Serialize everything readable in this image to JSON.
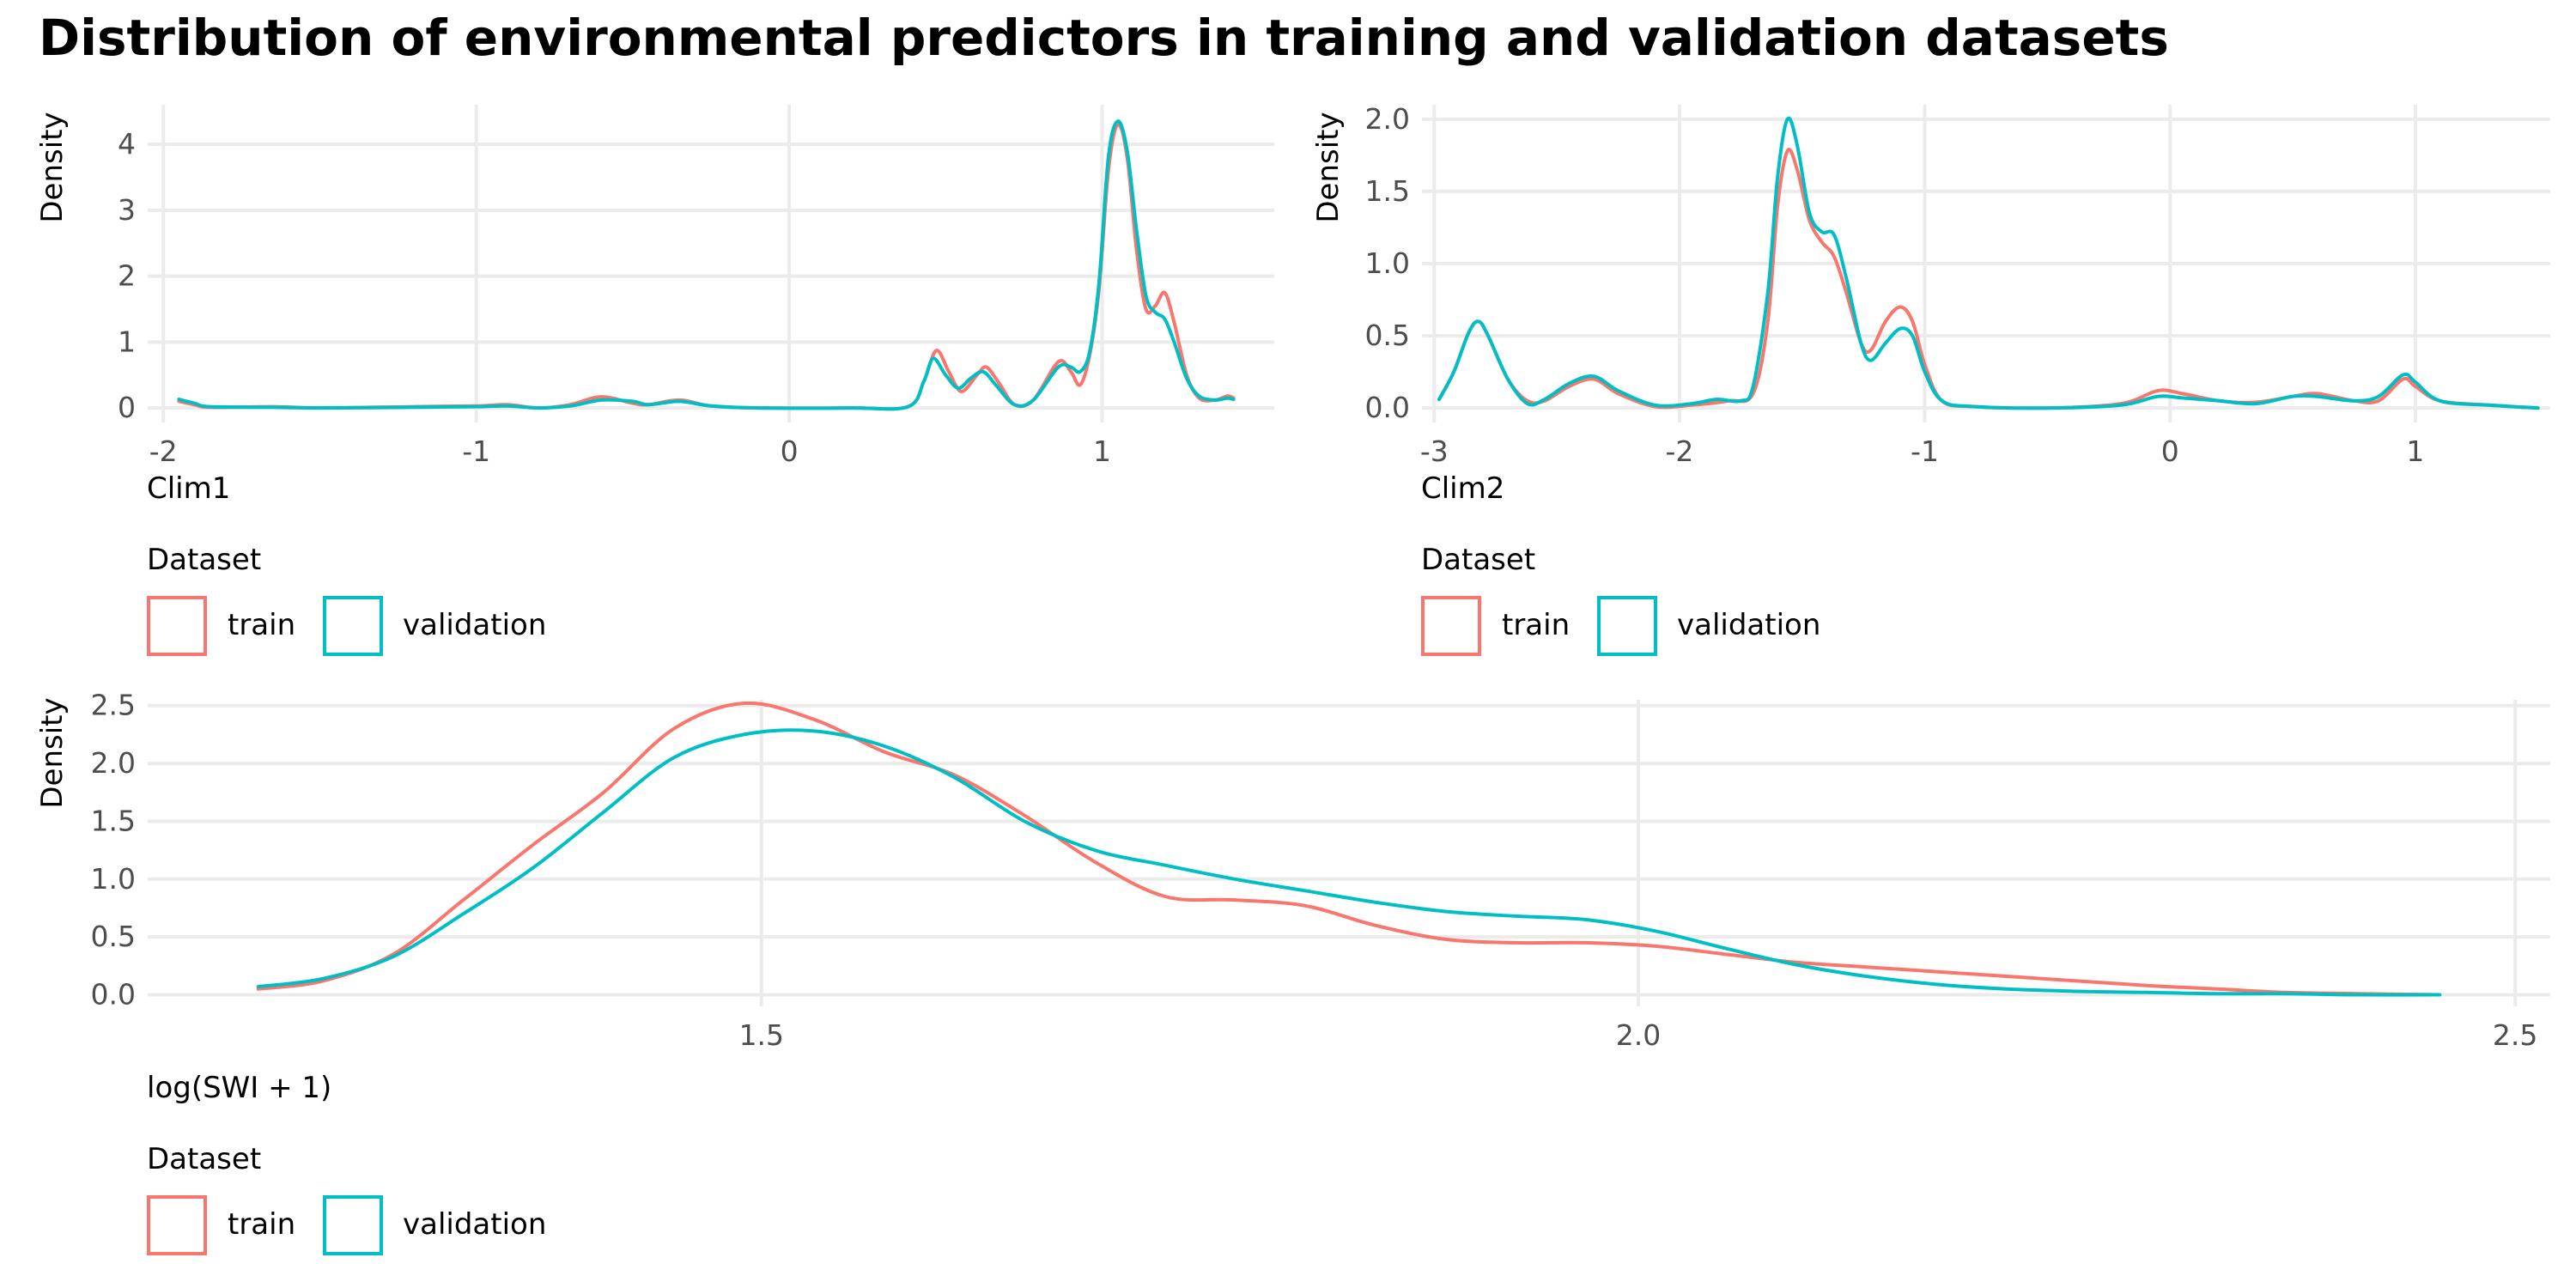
{
  "title": "Distribution of environmental predictors in training and validation datasets",
  "colors": {
    "train": "#F8766D",
    "validation": "#00BFC4",
    "grid": "#EBEBEB"
  },
  "chart_data": [
    {
      "type": "line",
      "name": "clim1",
      "xlabel": "Clim1",
      "ylabel": "Density",
      "xlim": [
        -2.05,
        1.55
      ],
      "ylim": [
        -0.22,
        4.6
      ],
      "x_ticks": [
        -2,
        -1,
        0,
        1
      ],
      "x_tick_labels": [
        "-2",
        "-1",
        "0",
        "1"
      ],
      "y_ticks": [
        0,
        1,
        2,
        3,
        4
      ],
      "y_tick_labels": [
        "0",
        "1",
        "2",
        "3",
        "4"
      ],
      "legend": {
        "title": "Dataset",
        "entries": [
          "train",
          "validation"
        ]
      },
      "series": [
        {
          "name": "train",
          "color": "#F8766D",
          "points": [
            [
              -1.95,
              0.1
            ],
            [
              -1.9,
              0.05
            ],
            [
              -1.85,
              0.01
            ],
            [
              -1.65,
              0.02
            ],
            [
              -1.5,
              0.0
            ],
            [
              -1.2,
              0.02
            ],
            [
              -1.0,
              0.03
            ],
            [
              -0.9,
              0.05
            ],
            [
              -0.8,
              0.0
            ],
            [
              -0.7,
              0.05
            ],
            [
              -0.6,
              0.17
            ],
            [
              -0.5,
              0.07
            ],
            [
              -0.45,
              0.05
            ],
            [
              -0.35,
              0.12
            ],
            [
              -0.25,
              0.03
            ],
            [
              -0.1,
              0.0
            ],
            [
              0.2,
              0.0
            ],
            [
              0.38,
              0.02
            ],
            [
              0.43,
              0.4
            ],
            [
              0.47,
              0.87
            ],
            [
              0.51,
              0.55
            ],
            [
              0.55,
              0.25
            ],
            [
              0.6,
              0.5
            ],
            [
              0.63,
              0.62
            ],
            [
              0.67,
              0.38
            ],
            [
              0.72,
              0.05
            ],
            [
              0.78,
              0.12
            ],
            [
              0.86,
              0.7
            ],
            [
              0.9,
              0.55
            ],
            [
              0.93,
              0.35
            ],
            [
              0.96,
              0.8
            ],
            [
              0.99,
              1.8
            ],
            [
              1.02,
              3.6
            ],
            [
              1.05,
              4.3
            ],
            [
              1.08,
              3.8
            ],
            [
              1.11,
              2.4
            ],
            [
              1.14,
              1.5
            ],
            [
              1.17,
              1.55
            ],
            [
              1.2,
              1.75
            ],
            [
              1.23,
              1.3
            ],
            [
              1.27,
              0.5
            ],
            [
              1.31,
              0.15
            ],
            [
              1.36,
              0.12
            ],
            [
              1.4,
              0.18
            ],
            [
              1.42,
              0.15
            ]
          ]
        },
        {
          "name": "validation",
          "color": "#00BFC4",
          "points": [
            [
              -1.95,
              0.13
            ],
            [
              -1.9,
              0.07
            ],
            [
              -1.85,
              0.02
            ],
            [
              -1.65,
              0.01
            ],
            [
              -1.5,
              0.0
            ],
            [
              -1.2,
              0.01
            ],
            [
              -1.0,
              0.02
            ],
            [
              -0.9,
              0.03
            ],
            [
              -0.8,
              0.0
            ],
            [
              -0.7,
              0.03
            ],
            [
              -0.6,
              0.12
            ],
            [
              -0.5,
              0.1
            ],
            [
              -0.45,
              0.05
            ],
            [
              -0.35,
              0.1
            ],
            [
              -0.25,
              0.03
            ],
            [
              -0.1,
              0.0
            ],
            [
              0.2,
              0.0
            ],
            [
              0.38,
              0.02
            ],
            [
              0.43,
              0.4
            ],
            [
              0.46,
              0.75
            ],
            [
              0.5,
              0.5
            ],
            [
              0.54,
              0.3
            ],
            [
              0.58,
              0.45
            ],
            [
              0.62,
              0.55
            ],
            [
              0.66,
              0.35
            ],
            [
              0.72,
              0.05
            ],
            [
              0.78,
              0.12
            ],
            [
              0.86,
              0.62
            ],
            [
              0.9,
              0.62
            ],
            [
              0.93,
              0.55
            ],
            [
              0.96,
              0.85
            ],
            [
              0.99,
              1.9
            ],
            [
              1.02,
              3.8
            ],
            [
              1.05,
              4.35
            ],
            [
              1.08,
              3.9
            ],
            [
              1.11,
              2.7
            ],
            [
              1.14,
              1.7
            ],
            [
              1.17,
              1.45
            ],
            [
              1.2,
              1.35
            ],
            [
              1.23,
              1.0
            ],
            [
              1.27,
              0.45
            ],
            [
              1.31,
              0.18
            ],
            [
              1.36,
              0.12
            ],
            [
              1.4,
              0.15
            ],
            [
              1.42,
              0.13
            ]
          ]
        }
      ]
    },
    {
      "type": "line",
      "name": "clim2",
      "xlabel": "Clim2",
      "ylabel": "Density",
      "xlim": [
        -3.05,
        1.55
      ],
      "ylim": [
        -0.1,
        2.1
      ],
      "x_ticks": [
        -3,
        -2,
        -1,
        0,
        1
      ],
      "x_tick_labels": [
        "-3",
        "-2",
        "-1",
        "0",
        "1"
      ],
      "y_ticks": [
        0,
        0.5,
        1,
        1.5,
        2
      ],
      "y_tick_labels": [
        "0.0",
        "0.5",
        "1.0",
        "1.5",
        "2.0"
      ],
      "legend": {
        "title": "Dataset",
        "entries": [
          "train",
          "validation"
        ]
      },
      "series": [
        {
          "name": "train",
          "color": "#F8766D",
          "points": [
            [
              -2.98,
              0.06
            ],
            [
              -2.92,
              0.25
            ],
            [
              -2.86,
              0.52
            ],
            [
              -2.82,
              0.6
            ],
            [
              -2.78,
              0.5
            ],
            [
              -2.7,
              0.2
            ],
            [
              -2.62,
              0.05
            ],
            [
              -2.55,
              0.05
            ],
            [
              -2.45,
              0.15
            ],
            [
              -2.35,
              0.2
            ],
            [
              -2.25,
              0.1
            ],
            [
              -2.1,
              0.01
            ],
            [
              -1.95,
              0.02
            ],
            [
              -1.8,
              0.05
            ],
            [
              -1.7,
              0.1
            ],
            [
              -1.64,
              0.6
            ],
            [
              -1.6,
              1.4
            ],
            [
              -1.56,
              1.78
            ],
            [
              -1.52,
              1.65
            ],
            [
              -1.47,
              1.3
            ],
            [
              -1.42,
              1.15
            ],
            [
              -1.37,
              1.05
            ],
            [
              -1.32,
              0.8
            ],
            [
              -1.26,
              0.45
            ],
            [
              -1.22,
              0.4
            ],
            [
              -1.16,
              0.6
            ],
            [
              -1.1,
              0.7
            ],
            [
              -1.05,
              0.6
            ],
            [
              -1.0,
              0.3
            ],
            [
              -0.93,
              0.05
            ],
            [
              -0.8,
              0.01
            ],
            [
              -0.5,
              0.0
            ],
            [
              -0.2,
              0.03
            ],
            [
              -0.05,
              0.12
            ],
            [
              0.05,
              0.1
            ],
            [
              0.2,
              0.05
            ],
            [
              0.35,
              0.04
            ],
            [
              0.5,
              0.08
            ],
            [
              0.6,
              0.1
            ],
            [
              0.75,
              0.05
            ],
            [
              0.85,
              0.05
            ],
            [
              0.95,
              0.2
            ],
            [
              1.0,
              0.15
            ],
            [
              1.1,
              0.05
            ],
            [
              1.3,
              0.02
            ],
            [
              1.5,
              0.0
            ]
          ]
        },
        {
          "name": "validation",
          "color": "#00BFC4",
          "points": [
            [
              -2.98,
              0.06
            ],
            [
              -2.92,
              0.25
            ],
            [
              -2.86,
              0.52
            ],
            [
              -2.82,
              0.6
            ],
            [
              -2.78,
              0.5
            ],
            [
              -2.7,
              0.2
            ],
            [
              -2.62,
              0.03
            ],
            [
              -2.55,
              0.06
            ],
            [
              -2.45,
              0.17
            ],
            [
              -2.35,
              0.22
            ],
            [
              -2.25,
              0.12
            ],
            [
              -2.1,
              0.02
            ],
            [
              -1.95,
              0.03
            ],
            [
              -1.85,
              0.06
            ],
            [
              -1.75,
              0.05
            ],
            [
              -1.7,
              0.15
            ],
            [
              -1.64,
              0.8
            ],
            [
              -1.6,
              1.6
            ],
            [
              -1.56,
              2.0
            ],
            [
              -1.52,
              1.82
            ],
            [
              -1.47,
              1.35
            ],
            [
              -1.42,
              1.22
            ],
            [
              -1.37,
              1.2
            ],
            [
              -1.32,
              0.9
            ],
            [
              -1.26,
              0.45
            ],
            [
              -1.22,
              0.33
            ],
            [
              -1.16,
              0.45
            ],
            [
              -1.1,
              0.55
            ],
            [
              -1.05,
              0.5
            ],
            [
              -1.0,
              0.25
            ],
            [
              -0.93,
              0.05
            ],
            [
              -0.8,
              0.01
            ],
            [
              -0.5,
              0.0
            ],
            [
              -0.2,
              0.02
            ],
            [
              -0.05,
              0.08
            ],
            [
              0.05,
              0.07
            ],
            [
              0.2,
              0.05
            ],
            [
              0.35,
              0.03
            ],
            [
              0.5,
              0.08
            ],
            [
              0.6,
              0.08
            ],
            [
              0.75,
              0.05
            ],
            [
              0.85,
              0.08
            ],
            [
              0.95,
              0.23
            ],
            [
              1.0,
              0.18
            ],
            [
              1.1,
              0.05
            ],
            [
              1.3,
              0.02
            ],
            [
              1.5,
              0.0
            ]
          ]
        }
      ]
    },
    {
      "type": "line",
      "name": "swi",
      "xlabel": "log(SWI + 1)",
      "ylabel": "Density",
      "xlim": [
        1.15,
        2.52
      ],
      "ylim": [
        -0.1,
        2.55
      ],
      "x_ticks": [
        1.5,
        2.0,
        2.5
      ],
      "x_tick_labels": [
        "1.5",
        "2.0",
        "2.5"
      ],
      "y_ticks": [
        0,
        0.5,
        1,
        1.5,
        2,
        2.5
      ],
      "y_tick_labels": [
        "0.0",
        "0.5",
        "1.0",
        "1.5",
        "2.0",
        "2.5"
      ],
      "legend": {
        "title": "Dataset",
        "entries": [
          "train",
          "validation"
        ]
      },
      "series": [
        {
          "name": "train",
          "color": "#F8766D",
          "points": [
            [
              1.213,
              0.05
            ],
            [
              1.25,
              0.12
            ],
            [
              1.29,
              0.35
            ],
            [
              1.33,
              0.82
            ],
            [
              1.37,
              1.3
            ],
            [
              1.41,
              1.75
            ],
            [
              1.45,
              2.3
            ],
            [
              1.49,
              2.52
            ],
            [
              1.53,
              2.38
            ],
            [
              1.57,
              2.1
            ],
            [
              1.61,
              1.9
            ],
            [
              1.65,
              1.55
            ],
            [
              1.69,
              1.15
            ],
            [
              1.73,
              0.85
            ],
            [
              1.77,
              0.82
            ],
            [
              1.81,
              0.77
            ],
            [
              1.85,
              0.6
            ],
            [
              1.89,
              0.48
            ],
            [
              1.93,
              0.45
            ],
            [
              1.97,
              0.45
            ],
            [
              2.01,
              0.42
            ],
            [
              2.05,
              0.35
            ],
            [
              2.09,
              0.28
            ],
            [
              2.13,
              0.24
            ],
            [
              2.17,
              0.2
            ],
            [
              2.21,
              0.16
            ],
            [
              2.25,
              0.12
            ],
            [
              2.29,
              0.08
            ],
            [
              2.33,
              0.05
            ],
            [
              2.37,
              0.02
            ],
            [
              2.41,
              0.01
            ],
            [
              2.457,
              0.0
            ]
          ]
        },
        {
          "name": "validation",
          "color": "#00BFC4",
          "points": [
            [
              1.213,
              0.07
            ],
            [
              1.25,
              0.14
            ],
            [
              1.29,
              0.33
            ],
            [
              1.33,
              0.7
            ],
            [
              1.37,
              1.1
            ],
            [
              1.41,
              1.58
            ],
            [
              1.45,
              2.05
            ],
            [
              1.49,
              2.25
            ],
            [
              1.53,
              2.28
            ],
            [
              1.57,
              2.15
            ],
            [
              1.61,
              1.88
            ],
            [
              1.65,
              1.5
            ],
            [
              1.69,
              1.25
            ],
            [
              1.73,
              1.12
            ],
            [
              1.77,
              1.0
            ],
            [
              1.81,
              0.9
            ],
            [
              1.85,
              0.8
            ],
            [
              1.89,
              0.72
            ],
            [
              1.93,
              0.68
            ],
            [
              1.97,
              0.65
            ],
            [
              2.01,
              0.55
            ],
            [
              2.05,
              0.4
            ],
            [
              2.09,
              0.26
            ],
            [
              2.13,
              0.16
            ],
            [
              2.17,
              0.09
            ],
            [
              2.21,
              0.05
            ],
            [
              2.25,
              0.03
            ],
            [
              2.29,
              0.02
            ],
            [
              2.33,
              0.01
            ],
            [
              2.37,
              0.01
            ],
            [
              2.41,
              0.0
            ],
            [
              2.457,
              0.0
            ]
          ]
        }
      ]
    }
  ]
}
